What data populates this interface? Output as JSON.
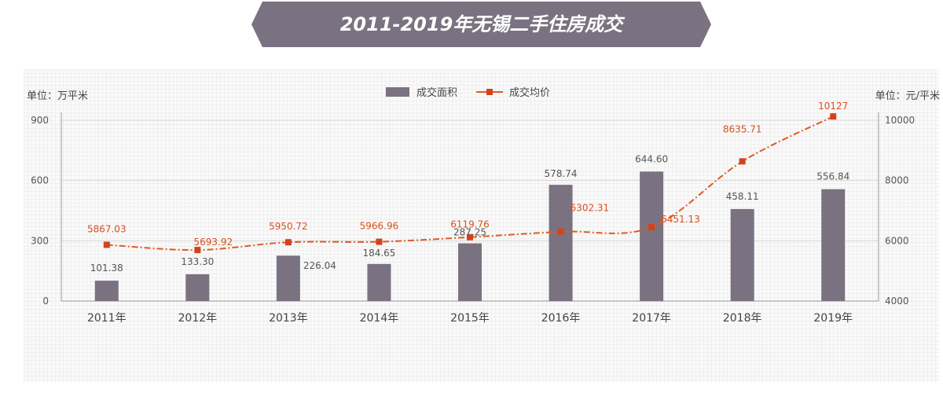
{
  "title": "2011-2019年无锡二手住房成交",
  "chart_data": {
    "type": "bar",
    "categories": [
      "2011年",
      "2012年",
      "2013年",
      "2014年",
      "2015年",
      "2016年",
      "2017年",
      "2018年",
      "2019年"
    ],
    "series": [
      {
        "name": "成交面积",
        "type": "bar",
        "axis": "left",
        "values": [
          101.38,
          133.3,
          226.04,
          184.65,
          287.25,
          578.74,
          644.6,
          458.11,
          556.84
        ],
        "labels": [
          "101.38",
          "133.30",
          "226.04",
          "184.65",
          "287.25",
          "578.74",
          "644.60",
          "458.11",
          "556.84"
        ]
      },
      {
        "name": "成交均价",
        "type": "line",
        "axis": "right",
        "values": [
          5867.03,
          5693.92,
          5950.72,
          5966.96,
          6119.76,
          6302.31,
          6451.13,
          8635.71,
          10127
        ],
        "labels": [
          "5867.03",
          "5693.92",
          "5950.72",
          "5966.96",
          "6119.76",
          "6302.31",
          "6451.13",
          "8635.71",
          "10127"
        ]
      }
    ],
    "left_axis": {
      "unit_label": "单位：万平米",
      "ticks": [
        "0",
        "300",
        "600",
        "900"
      ],
      "range": [
        0,
        900
      ]
    },
    "right_axis": {
      "unit_label": "单位：元/平米",
      "ticks": [
        "4000",
        "6000",
        "8000",
        "10000"
      ],
      "range": [
        4000,
        10000
      ]
    },
    "legend_position": "top-center",
    "grid": true
  },
  "colors": {
    "bar": "#7a7281",
    "line": "#e05a24",
    "line_label": "#d9501e",
    "bar_label": "#555555",
    "banner": "#7a7281"
  }
}
